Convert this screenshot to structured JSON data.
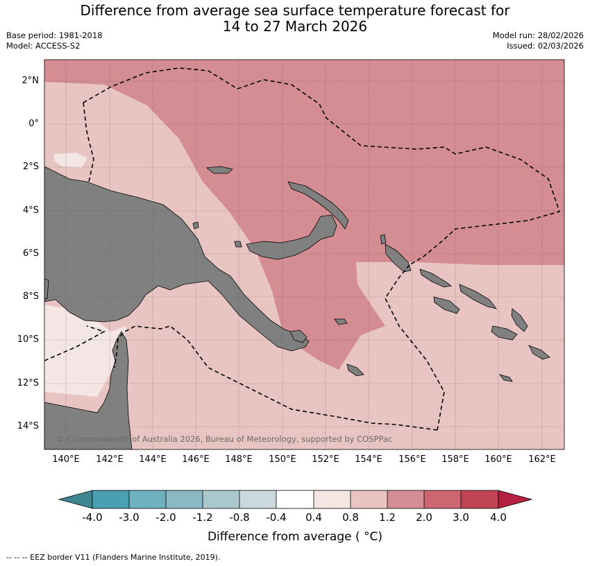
{
  "title": {
    "line1": "Difference from average sea surface temperature forecast for",
    "line2": "14 to 27 March 2026"
  },
  "meta": {
    "base_period": "Base period: 1981-2018",
    "model": "Model: ACCESS-S2",
    "model_run": "Model run: 28/02/2026",
    "issued": "Issued: 02/03/2026"
  },
  "map": {
    "lat_labels": [
      "2°N",
      "0°",
      "2°S",
      "4°S",
      "6°S",
      "8°S",
      "10°S",
      "12°S",
      "14°S"
    ],
    "lon_labels": [
      "140°E",
      "142°E",
      "144°E",
      "146°E",
      "148°E",
      "150°E",
      "152°E",
      "154°E",
      "156°E",
      "158°E",
      "160°E",
      "162°E"
    ],
    "copyright": "© Commonwealth of Australia 2026, Bureau of Meteorology, supported by COSPPac",
    "colors": {
      "land": "#808080",
      "anom_0_4_0_8": "#f4e6e4",
      "anom_0_8_1_2": "#e8c5c2",
      "anom_1_2_2_0": "#d58d94",
      "ocean_edge": "#ffffff"
    }
  },
  "colorbar": {
    "ticks": [
      "-4.0",
      "-3.0",
      "-2.0",
      "-1.2",
      "-0.8",
      "-0.4",
      "0.4",
      "0.8",
      "1.2",
      "2.0",
      "3.0",
      "4.0"
    ],
    "colors": [
      "#3d8590",
      "#4aa0b3",
      "#6fb0bf",
      "#8ab8c5",
      "#a9c8cd",
      "#cbd9de",
      "#ffffff",
      "#f5e6e4",
      "#e8c5c2",
      "#d58d94",
      "#cc6670",
      "#c04454",
      "#b52040"
    ],
    "label": "Difference from average ( °C)"
  },
  "footnote": "-- -- -- EEZ border V11 (Flanders Marine Institute, 2019)."
}
